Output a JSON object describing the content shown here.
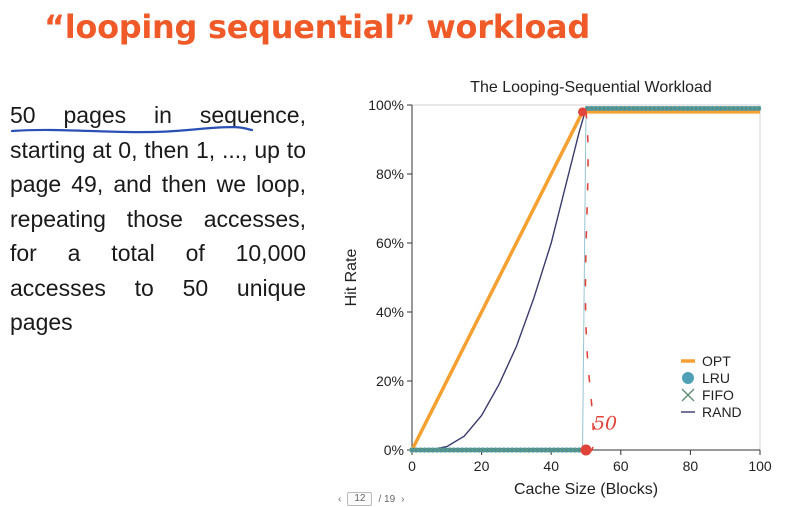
{
  "slide": {
    "title": "“looping sequential” workload",
    "paragraph_underlined": "50 pages in sequence",
    "paragraph_rest": ", starting at 0, then 1, ..., up to page 49, and then we loop, repeating those accesses, for a total of 10,000 accesses to 50 unique pages"
  },
  "annotation": {
    "text": "50",
    "color": "#e0443a"
  },
  "pager": {
    "current": "12",
    "total": "/ 19",
    "prev": "‹",
    "next": "›"
  },
  "chart_data": {
    "type": "line",
    "title": "The Looping-Sequential Workload",
    "xlabel": "Cache Size (Blocks)",
    "ylabel": "Hit Rate",
    "xlim": [
      0,
      100
    ],
    "ylim": [
      0,
      100
    ],
    "xticks": [
      0,
      20,
      40,
      60,
      80,
      100
    ],
    "yticks": [
      0,
      20,
      40,
      60,
      80,
      100
    ],
    "ytick_labels": [
      "0%",
      "20%",
      "40%",
      "60%",
      "80%",
      "100%"
    ],
    "legend_position": "bottom-right",
    "series": [
      {
        "name": "OPT",
        "color": "#f5a030",
        "x": [
          0,
          49,
          100
        ],
        "y": [
          0,
          98,
          98
        ]
      },
      {
        "name": "LRU",
        "color": "#4f9fb5",
        "x": [
          0,
          49,
          50,
          100
        ],
        "y": [
          0,
          0,
          99,
          99
        ]
      },
      {
        "name": "FIFO",
        "color": "#5a8a70",
        "x": [
          0,
          49,
          50,
          100
        ],
        "y": [
          0,
          0,
          99,
          99
        ]
      },
      {
        "name": "RAND",
        "color": "#3a3a6e",
        "x": [
          0,
          5,
          10,
          15,
          20,
          25,
          30,
          35,
          40,
          45,
          48,
          50,
          100
        ],
        "y": [
          0,
          0,
          1,
          4,
          10,
          19,
          30,
          44,
          60,
          80,
          92,
          99,
          99
        ]
      }
    ]
  }
}
